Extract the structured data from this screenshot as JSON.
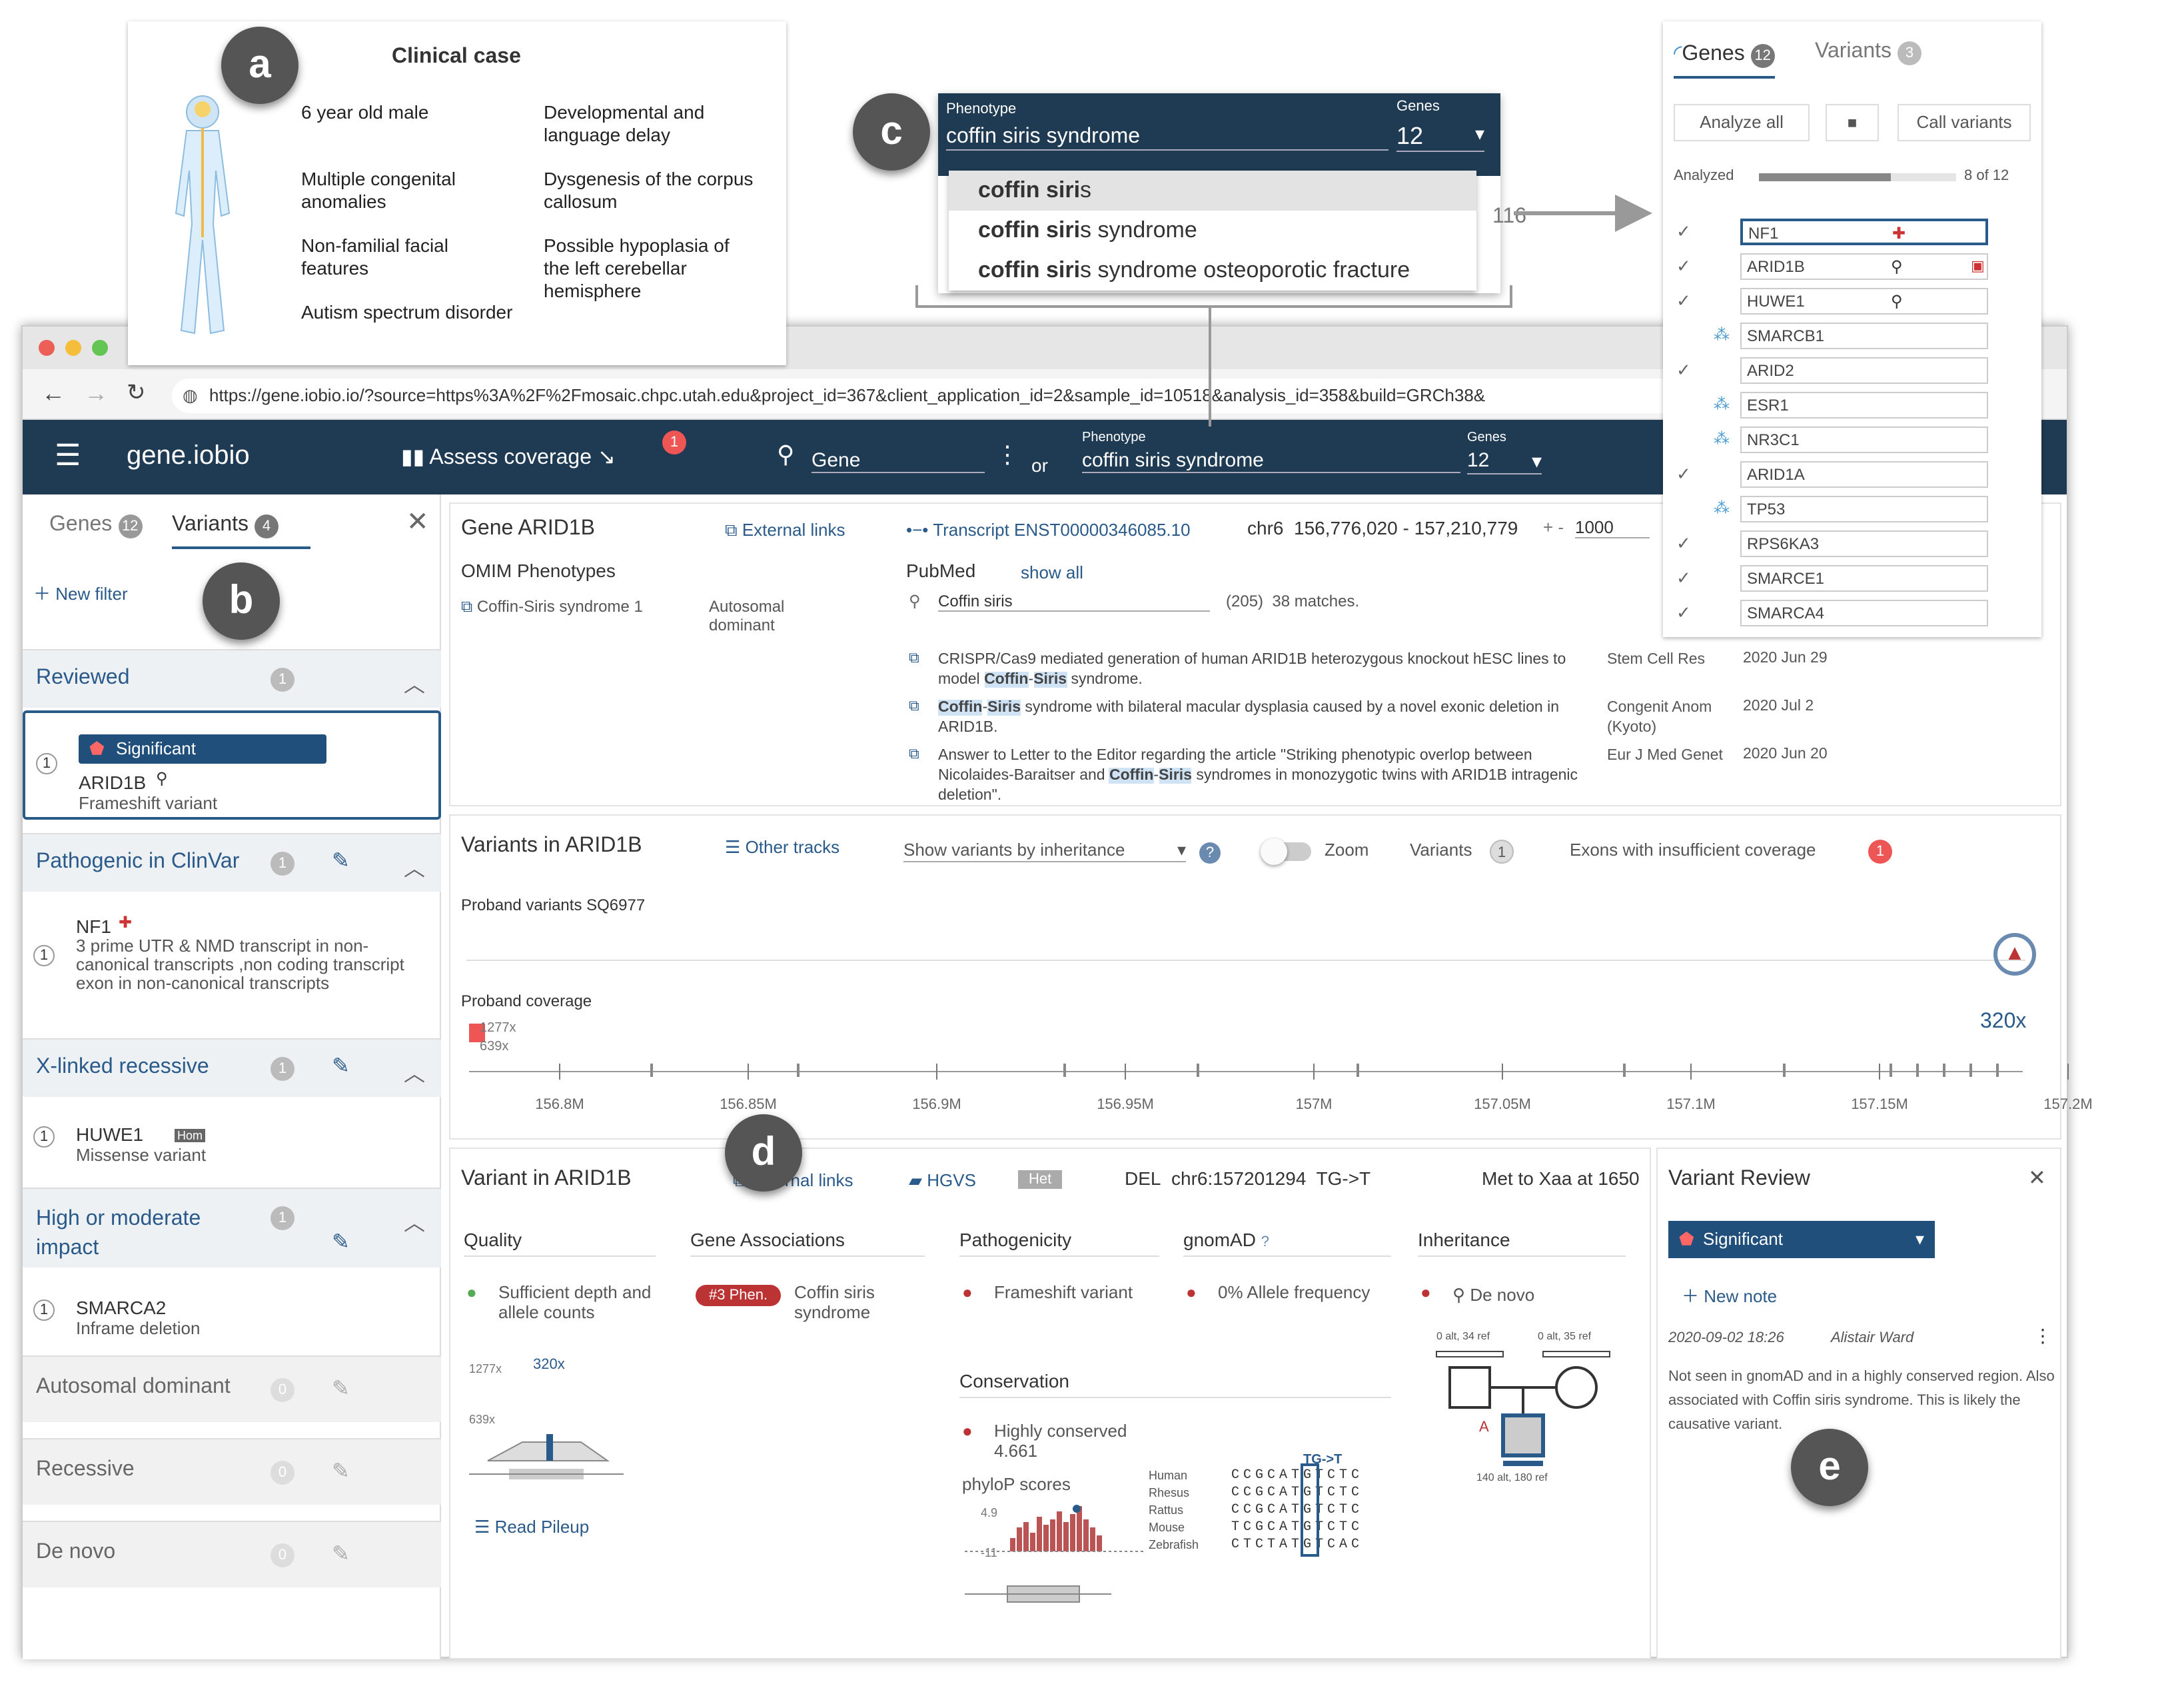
{
  "clinical_case": {
    "title": "Clinical case",
    "items": [
      "6 year old male",
      "Developmental and language delay",
      "Multiple congenital anomalies",
      "Dysgenesis of the corpus callosum",
      "Non-familial facial features",
      "Possible hypoplasia of the left cerebellar hemisphere",
      "Autism spectrum disorder"
    ]
  },
  "labels": {
    "a": "a",
    "b": "b",
    "c": "c",
    "d": "d",
    "e": "e"
  },
  "phenotype_popup": {
    "phenotype_label": "Phenotype",
    "phenotype_value": "coffin siris syndrome",
    "genes_label": "Genes",
    "genes_value": "12",
    "suggestions": [
      {
        "bold": "coffin siri",
        "rest": "s"
      },
      {
        "bold": "coffin siri",
        "rest": "s syndrome"
      },
      {
        "bold": "coffin siri",
        "rest": "s syndrome osteoporotic fracture"
      }
    ],
    "behind_text": "116"
  },
  "genes_panel": {
    "tab_genes": "Genes",
    "genes_count": "12",
    "tab_variants": "Variants",
    "variants_count": "3",
    "analyze_all": "Analyze all",
    "stop": "■",
    "call_variants": "Call variants",
    "analyzed_label": "Analyzed",
    "analyzed_count": "8 of 12",
    "progress": 0.67,
    "genes": [
      {
        "name": "NF1",
        "check": "✓",
        "badge": "clinvar"
      },
      {
        "name": "ARID1B",
        "check": "✓",
        "badge": "denovo"
      },
      {
        "name": "HUWE1",
        "check": "✓",
        "badge": "hom"
      },
      {
        "name": "SMARCB1",
        "check": "",
        "badge": "loading"
      },
      {
        "name": "ARID2",
        "check": "✓",
        "badge": ""
      },
      {
        "name": "ESR1",
        "check": "",
        "badge": "loading"
      },
      {
        "name": "NR3C1",
        "check": "",
        "badge": "loading"
      },
      {
        "name": "ARID1A",
        "check": "✓",
        "badge": ""
      },
      {
        "name": "TP53",
        "check": "",
        "badge": "loading"
      },
      {
        "name": "RPS6KA3",
        "check": "✓",
        "badge": ""
      },
      {
        "name": "SMARCE1",
        "check": "✓",
        "badge": ""
      },
      {
        "name": "SMARCA4",
        "check": "✓",
        "badge": ""
      }
    ]
  },
  "browser": {
    "url": "https://gene.iobio.io/?source=https%3A%2F%2Fmosaic.chpc.utah.edu&project_id=367&client_application_id=2&sample_id=10518&analysis_id=358&build=GRCh38&"
  },
  "nav": {
    "app_name": "gene.iobio",
    "assess_coverage": "Assess coverage",
    "coverage_badge": "1",
    "gene_placeholder": "Gene",
    "or": "or",
    "phenotype_label": "Phenotype",
    "phenotype_value": "coffin siris syndrome",
    "genes_label": "Genes",
    "genes_value": "12"
  },
  "left": {
    "tab_genes": "Genes",
    "genes_count": "12",
    "tab_variants": "Variants",
    "variants_count": "4",
    "new_filter": "New filter",
    "sections": [
      {
        "title": "Reviewed",
        "count": "1"
      },
      {
        "title": "Pathogenic in ClinVar",
        "count": "1"
      },
      {
        "title": "X-linked recessive",
        "count": "1"
      },
      {
        "title": "High or moderate impact",
        "count": "1"
      },
      {
        "title": "Autosomal dominant",
        "count": "0"
      },
      {
        "title": "Recessive",
        "count": "0"
      },
      {
        "title": "De novo",
        "count": "0"
      }
    ],
    "reviewed_item": {
      "tag": "Significant",
      "gene": "ARID1B",
      "type": "Frameshift variant",
      "num": "1"
    },
    "clinvar_item": {
      "gene": "NF1",
      "type": "3 prime UTR & NMD transcript in non-canonical transcripts ,non coding transcript exon in non-canonical transcripts",
      "num": "1"
    },
    "xlinked_item": {
      "gene": "HUWE1",
      "badge": "Hom",
      "type": "Missense variant",
      "num": "1"
    },
    "impact_item": {
      "gene": "SMARCA2",
      "type": "Inframe deletion",
      "num": "1"
    }
  },
  "gene_card": {
    "title": "Gene ARID1B",
    "external_links": "External links",
    "transcript": "Transcript ENST00000346085.10",
    "chr": "chr6",
    "coords": "156,776,020 - 157,210,779",
    "pm": "+ -",
    "flank": "1000",
    "omim_label": "OMIM Phenotypes",
    "omim_item": "Coffin-Siris syndrome 1",
    "omim_mode": "Autosomal dominant",
    "pubmed_label": "PubMed",
    "show_all": "show all",
    "pubmed_search": "Coffin siris",
    "pubmed_count": "(205)",
    "pubmed_matches": "38 matches.",
    "pubs": [
      {
        "pre": "CRISPR/Cas9 mediated generation of human ARID1B heterozygous knockout hESC lines to model ",
        "h1": "Coffin",
        "mid": "-",
        "h2": "Siris",
        "post": " syndrome.",
        "journal": "Stem Cell Res",
        "date": "2020 Jun 29"
      },
      {
        "pre": "",
        "h1": "Coffin",
        "mid": "-",
        "h2": "Siris",
        "post": " syndrome with bilateral macular dysplasia caused by a novel exonic deletion in ARID1B.",
        "journal": "Congenit Anom (Kyoto)",
        "date": "2020 Jul 2"
      },
      {
        "pre": "Answer to Letter to the Editor regarding the article \"Striking phenotypic overlop between Nicolaides-Baraitser and ",
        "h1": "Coffin",
        "mid": "-",
        "h2": "Siris",
        "post": " syndromes in monozygotic twins with ARID1B intragenic deletion\".",
        "journal": "Eur J Med Genet",
        "date": "2020 Jun 20"
      }
    ]
  },
  "variants_card": {
    "title": "Variants in ARID1B",
    "other_tracks": "Other tracks",
    "show_by": "Show variants by inheritance",
    "zoom": "Zoom",
    "variants_label": "Variants",
    "variants_count": "1",
    "exons_label": "Exons with insufficient coverage",
    "exons_count": "1",
    "proband_variants": "Proband variants SQ6977",
    "proband_coverage": "Proband coverage",
    "cov1": "1277x",
    "cov2": "639x",
    "cov_max": "320x",
    "ticks": [
      "156.8M",
      "156.85M",
      "156.9M",
      "156.95M",
      "157M",
      "157.05M",
      "157.1M",
      "157.15M",
      "157.2M"
    ]
  },
  "variant_card": {
    "title": "Variant in ARID1B",
    "external_links": "External links",
    "hgvs": "HGVS",
    "zyg": "Het",
    "type": "DEL",
    "pos": "chr6:157201294",
    "change": "TG->T",
    "protein": "Met to Xaa at 1650",
    "quality_h": "Quality",
    "quality_v": "Sufficient depth and allele counts",
    "assoc_h": "Gene Associations",
    "assoc_badge": "#3 Phen.",
    "assoc_v": "Coffin siris syndrome",
    "path_h": "Pathogenicity",
    "path_v": "Frameshift variant",
    "gnomad_h": "gnomAD",
    "gnomad_v": "0% Allele frequency",
    "inh_h": "Inheritance",
    "inh_v": "De novo",
    "cov_a": "1277x",
    "cov_b": "639x",
    "cov_c": "320x",
    "read_pileup": "Read Pileup",
    "cons_h": "Conservation",
    "cons_v": "Highly conserved 4.661",
    "phylop": "phyloP scores",
    "phylop_top": "4.9",
    "phylop_bot": "-11",
    "tg": "TG->T",
    "species": [
      "Human",
      "Rhesus",
      "Rattus",
      "Mouse",
      "Zebrafish"
    ],
    "seqs": [
      "CCGCATGTCTC",
      "CCGCATGTCTC",
      "CCGCATGTCTC",
      "TCGCATGTCTC",
      "CTCTATGTCAC"
    ],
    "ped_mother": "0 alt, 35 ref",
    "ped_father": "0 alt, 34 ref",
    "ped_child": "140 alt, 180 ref"
  },
  "review": {
    "title": "Variant Review",
    "status": "Significant",
    "new_note": "New note",
    "date": "2020-09-02 18:26",
    "author": "Alistair Ward",
    "note": "Not seen in gnomAD and in a highly conserved region. Also associated with Coffin siris syndrome. This is likely the causative variant."
  },
  "colors": {
    "nav": "#1f3a53",
    "accent": "#2a5a8a",
    "danger": "#c0393b"
  }
}
